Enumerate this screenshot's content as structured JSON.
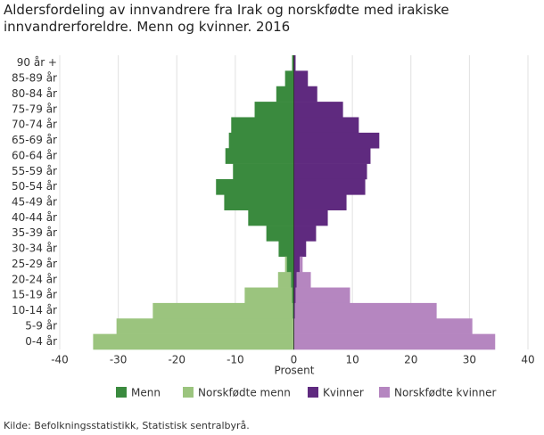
{
  "chart_data": {
    "type": "pyramid",
    "title": "Aldersfordeling av innvandrere fra Irak og norskfødte med irakiske innvandrerforeldre. Menn og kvinner. 2016",
    "xlabel": "Prosent",
    "source": "Kilde: Befolkningsstatistikk, Statistisk sentralbyrå.",
    "categories": [
      "90 år +",
      "85-89 år",
      "80-84 år",
      "75-79 år",
      "70-74 år",
      "65-69 år",
      "60-64 år",
      "55-59 år",
      "50-54 år",
      "45-49 år",
      "40-44 år",
      "35-39 år",
      "30-34 år",
      "25-29 år",
      "20-24 år",
      "15-19 år",
      "10-14 år",
      "5-9 år",
      "0-4 år"
    ],
    "series": [
      {
        "name": "Menn",
        "color": "#3a8a3e",
        "values": [
          -0.3,
          -1.5,
          -3.0,
          -6.7,
          -10.7,
          -11.1,
          -11.7,
          -10.4,
          -13.3,
          -11.9,
          -7.8,
          -4.7,
          -2.6,
          -1.2,
          -0.5,
          -0.3,
          -0.2,
          -0.1,
          -0.1
        ]
      },
      {
        "name": "Norskfødte menn",
        "color": "#9bc47e",
        "values": [
          0,
          0,
          0,
          0,
          0,
          0,
          0,
          0,
          0,
          0,
          0,
          0,
          0,
          -0.3,
          -2.2,
          -8.1,
          -23.9,
          -30.2,
          -34.2
        ]
      },
      {
        "name": "Kvinner",
        "color": "#5f2a7f",
        "values": [
          0.3,
          2.4,
          4.0,
          8.4,
          11.1,
          14.6,
          13.1,
          12.5,
          12.2,
          9.0,
          5.8,
          3.8,
          2.1,
          1.0,
          0.5,
          0.3,
          0.2,
          0.1,
          0.1
        ]
      },
      {
        "name": "Norskfødte kvinner",
        "color": "#b586c0",
        "values": [
          0,
          0,
          0,
          0,
          0,
          0,
          0,
          0,
          0,
          0,
          0,
          0,
          0,
          0.5,
          2.4,
          9.3,
          24.2,
          30.4,
          34.3
        ]
      }
    ],
    "xlim": [
      -40,
      40
    ],
    "xticks": [
      -40,
      -30,
      -20,
      -10,
      0,
      10,
      20,
      30,
      40
    ],
    "grid": true
  }
}
